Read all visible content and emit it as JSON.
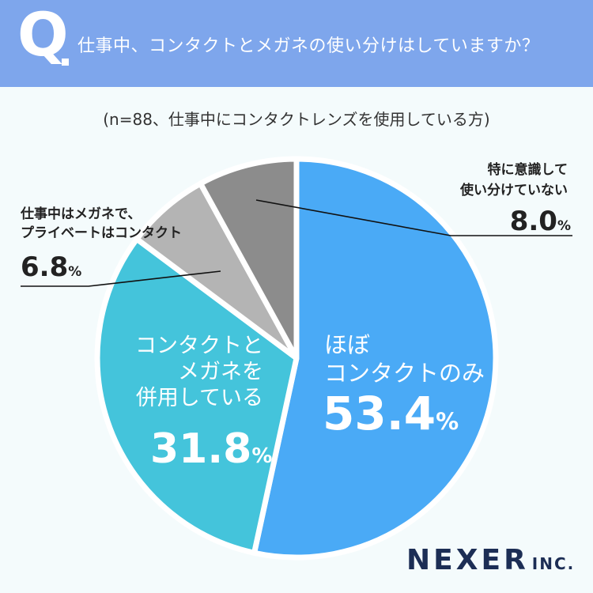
{
  "header": {
    "q_letter": "Q",
    "question": "仕事中、コンタクトとメガネの使い分けはしていますか？"
  },
  "subtitle": "(n=88、仕事中にコンタクトレンズを使用している方)",
  "brand": {
    "name": "NEXER",
    "suffix": "INC."
  },
  "chart_data": {
    "type": "pie",
    "title": "仕事中、コンタクトとメガネの使い分けはしていますか？",
    "subtitle": "(n=88、仕事中にコンタクトレンズを使用している方)",
    "start": "12 o'clock, clockwise",
    "slices": [
      {
        "label": [
          "ほぼ",
          "コンタクトのみ"
        ],
        "value": 53.4,
        "value_text": "53.4",
        "unit": "%",
        "color": "#4aaaf6",
        "label_position": "inside"
      },
      {
        "label": [
          "コンタクトと",
          "メガネを",
          "併用している"
        ],
        "value": 31.8,
        "value_text": "31.8",
        "unit": "%",
        "color": "#44c4db",
        "label_position": "inside"
      },
      {
        "label": [
          "仕事中はメガネで、",
          "プライベートはコンタクト"
        ],
        "value": 6.8,
        "value_text": "6.8",
        "unit": "%",
        "color": "#b4b4b4",
        "label_position": "outside-left"
      },
      {
        "label": [
          "特に意識して",
          "使い分けていない"
        ],
        "value": 8.0,
        "value_text": "8.0",
        "unit": "%",
        "color": "#8c8c8c",
        "label_position": "outside-right"
      }
    ]
  }
}
